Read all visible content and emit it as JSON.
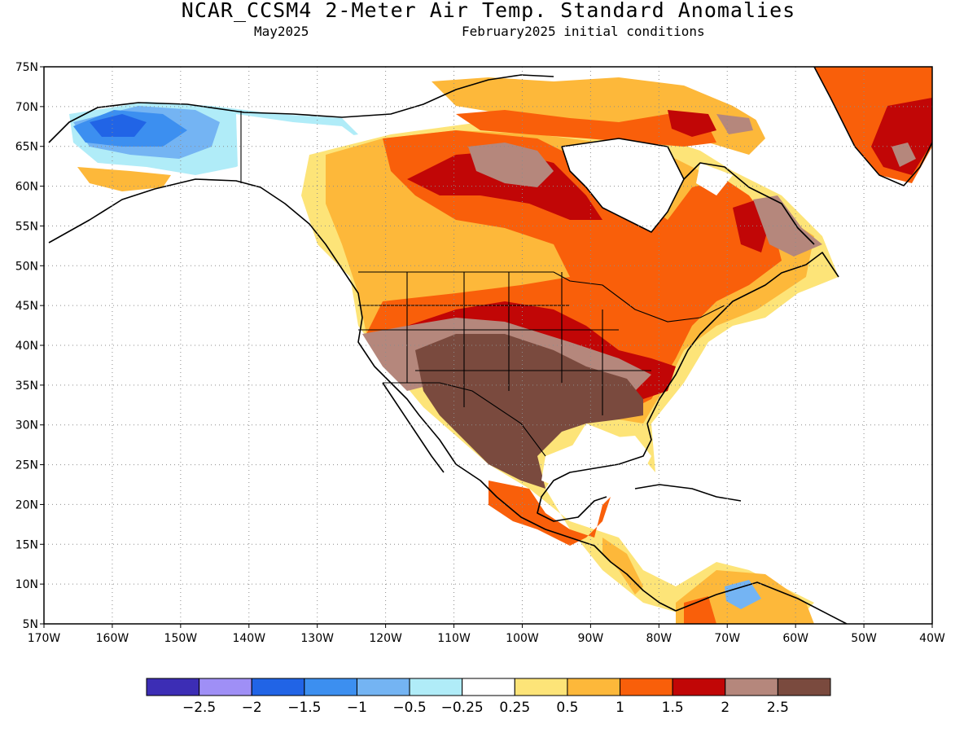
{
  "header": {
    "title": "NCAR_CCSM4 2-Meter Air Temp. Standard Anomalies",
    "valid_month": "May2025",
    "init_conditions": "February2025 initial conditions"
  },
  "map": {
    "projection": "cylindrical-equidistant",
    "lon_range": [
      -170,
      -40
    ],
    "lat_range": [
      5,
      75
    ],
    "grid": "dotted",
    "lat_ticks": [
      "75N",
      "70N",
      "65N",
      "60N",
      "55N",
      "50N",
      "45N",
      "40N",
      "35N",
      "30N",
      "25N",
      "20N",
      "15N",
      "10N",
      "5N"
    ],
    "lon_ticks": [
      "170W",
      "160W",
      "150W",
      "140W",
      "130W",
      "120W",
      "110W",
      "100W",
      "90W",
      "80W",
      "70W",
      "60W",
      "50W",
      "40W"
    ],
    "ocean_color": "#ffffff",
    "coastline_color": "#000000"
  },
  "colorbar": {
    "colors": [
      "#3c2db5",
      "#9f8ff6",
      "#2164e6",
      "#3c8ff0",
      "#74b4f3",
      "#b0ecf8",
      "#ffffff",
      "#fde478",
      "#fdb83a",
      "#f95f0a",
      "#c10606",
      "#b5877c",
      "#7a4a3e"
    ],
    "labels": [
      "−2.5",
      "−2",
      "−1.5",
      "−1",
      "−0.5",
      "−0.25",
      "0.25",
      "0.5",
      "1",
      "1.5",
      "2",
      "2.5"
    ]
  }
}
